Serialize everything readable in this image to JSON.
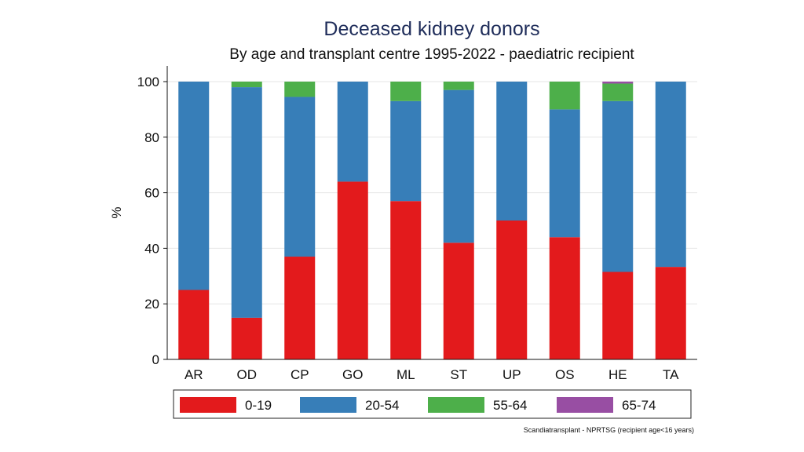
{
  "chart_data": {
    "type": "bar",
    "stacked": true,
    "title": "Deceased kidney donors",
    "subtitle": "By age and transplant centre 1995-2022 - paediatric recipient",
    "xlabel": "",
    "ylabel": "%",
    "ylim": [
      0,
      100
    ],
    "yticks": [
      0,
      20,
      40,
      60,
      80,
      100
    ],
    "grid": true,
    "legend_position": "bottom",
    "categories": [
      "AR",
      "OD",
      "CP",
      "GO",
      "ML",
      "ST",
      "UP",
      "OS",
      "HE",
      "TA"
    ],
    "series": [
      {
        "name": "0-19",
        "color": "#e31a1c",
        "values": [
          25,
          15,
          37,
          64,
          57,
          42,
          50,
          44,
          31.5,
          33.3
        ]
      },
      {
        "name": "20-54",
        "color": "#377eb8",
        "values": [
          75,
          83,
          57.5,
          36,
          36,
          55,
          50,
          46,
          61.5,
          66.7
        ]
      },
      {
        "name": "55-64",
        "color": "#4daf4a",
        "values": [
          0,
          2,
          5.5,
          0,
          7,
          3,
          0,
          10,
          6.3,
          0
        ]
      },
      {
        "name": "65-74",
        "color": "#984ea3",
        "values": [
          0,
          0,
          0,
          0,
          0,
          0,
          0,
          0,
          0.7,
          0
        ]
      }
    ],
    "source_note": "Scandiatransplant - NPRTSG (recipient age<16 years)",
    "colors": {
      "title": "#1f2d5a",
      "grid": "#e6e6e6",
      "axis": "#111111"
    }
  }
}
